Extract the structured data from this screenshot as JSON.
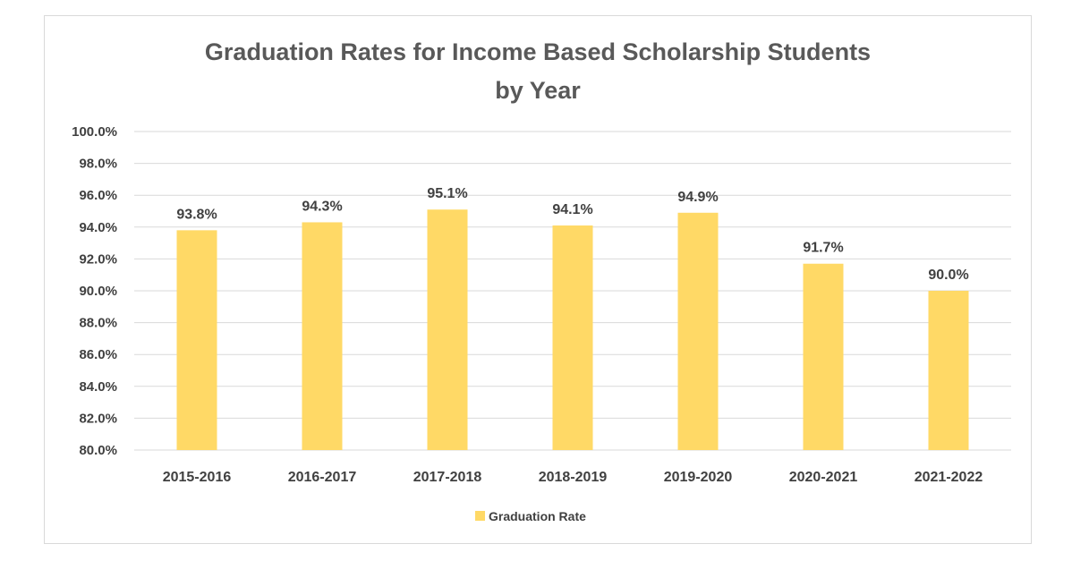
{
  "chart_data": {
    "type": "bar",
    "title_lines": [
      "Graduation Rates for Income Based Scholarship Students",
      "by Year"
    ],
    "xlabel": "",
    "ylabel": "",
    "categories": [
      "2015-2016",
      "2016-2017",
      "2017-2018",
      "2018-2019",
      "2019-2020",
      "2020-2021",
      "2021-2022"
    ],
    "series": [
      {
        "name": "Graduation Rate",
        "values": [
          93.8,
          94.3,
          95.1,
          94.1,
          94.9,
          91.7,
          90.0
        ],
        "labels": [
          "93.8%",
          "94.3%",
          "95.1%",
          "94.1%",
          "94.9%",
          "91.7%",
          "90.0%"
        ],
        "color": "#FFD966"
      }
    ],
    "ylim": [
      80,
      100
    ],
    "yticks": [
      80,
      82,
      84,
      86,
      88,
      90,
      92,
      94,
      96,
      98,
      100
    ],
    "ytick_labels": [
      "80.0%",
      "82.0%",
      "84.0%",
      "86.0%",
      "88.0%",
      "90.0%",
      "92.0%",
      "94.0%",
      "96.0%",
      "98.0%",
      "100.0%"
    ],
    "grid": true,
    "legend_position": "bottom"
  },
  "colors": {
    "bar": "#FFD966",
    "gridline": "#d9d9d9",
    "title": "#595959",
    "text": "#404040"
  }
}
